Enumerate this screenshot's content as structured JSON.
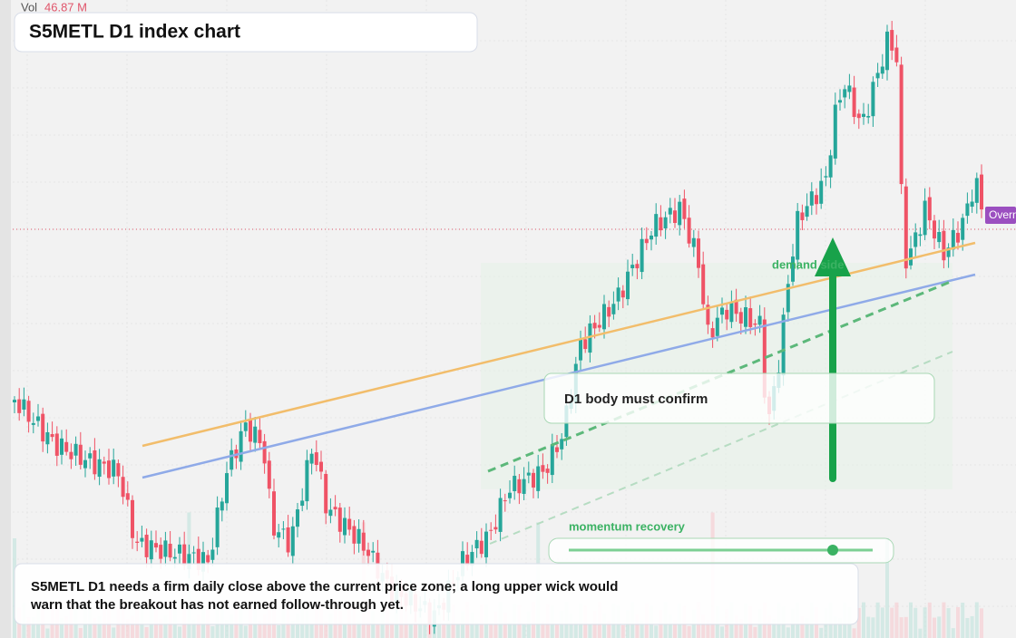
{
  "header": {
    "vol_label": "Vol",
    "vol_value": "46.87 M",
    "title": "S5METL D1 index chart"
  },
  "price_tag": "Overn",
  "annotations": {
    "zone": "demand side",
    "confirm": "D1 body must confirm",
    "momentum": "momentum recovery"
  },
  "note": [
    "S5METL D1 needs a firm daily close above the current price zone; a long upper wick would",
    "warn that the breakout has not earned follow-through yet."
  ]
}
